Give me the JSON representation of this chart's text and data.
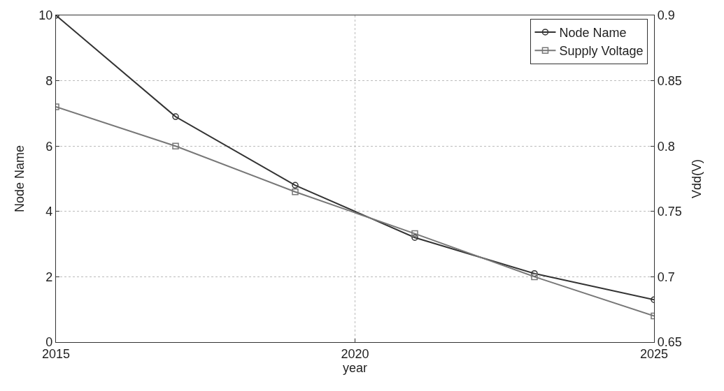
{
  "chart_data": {
    "type": "line",
    "xlabel": "year",
    "ylabel": "Node Name",
    "y2label": "Vdd(V)",
    "x": [
      2015,
      2017,
      2019,
      2021,
      2023,
      2025
    ],
    "series": [
      {
        "name": "Node Name",
        "color": "#333333",
        "marker": "circle",
        "values": [
          10,
          6.9,
          4.8,
          3.2,
          2.1,
          1.3
        ]
      },
      {
        "name": "Supply Voltage",
        "color": "#777777",
        "marker": "square",
        "axis": "y2",
        "values": [
          0.83,
          0.8,
          0.765,
          0.733,
          0.7,
          0.67
        ]
      }
    ],
    "xlim": [
      2015,
      2025
    ],
    "xticks": [
      2015,
      2020,
      2025
    ],
    "ylim": [
      0,
      10
    ],
    "yticks": [
      0,
      2,
      4,
      6,
      8,
      10
    ],
    "y2lim": [
      0.65,
      0.9
    ],
    "y2ticks": [
      0.65,
      0.7,
      0.75,
      0.8,
      0.85,
      0.9
    ],
    "grid": true,
    "legend": "top right",
    "line_style": "solid"
  }
}
